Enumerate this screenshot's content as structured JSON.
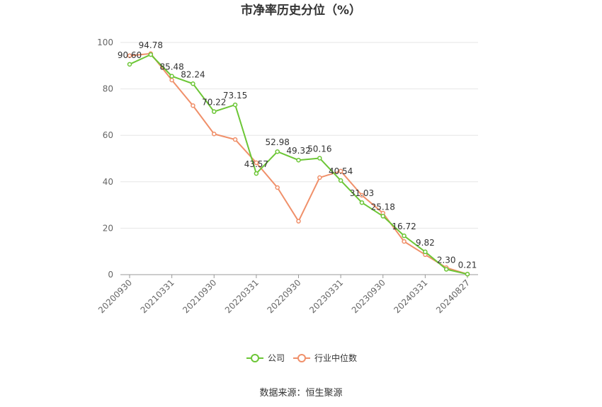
{
  "chart_data": {
    "type": "line",
    "title": "市净率历史分位（%）",
    "xlabel": "",
    "ylabel": "",
    "ylim": [
      0,
      100
    ],
    "yticks": [
      0,
      20,
      40,
      60,
      80,
      100
    ],
    "x_tick_labels": [
      "20200930",
      "20210331",
      "20210930",
      "20220331",
      "20220930",
      "20230331",
      "20230930",
      "20240331",
      "20240827"
    ],
    "x_points": 17,
    "x_tick_indices": [
      0,
      2,
      4,
      6,
      8,
      10,
      12,
      14,
      16
    ],
    "grid": true,
    "legend_position": "bottom-center",
    "series": [
      {
        "name": "公司",
        "color": "#6cc636",
        "values": [
          90.6,
          94.78,
          85.48,
          82.24,
          70.22,
          73.15,
          43.57,
          52.98,
          49.32,
          50.16,
          40.54,
          31.03,
          25.18,
          16.72,
          9.82,
          2.3,
          0.21
        ],
        "labels": [
          "90.60",
          "94.78",
          "85.48",
          "82.24",
          "70.22",
          "73.15",
          "43.57",
          "52.98",
          "49.32",
          "50.16",
          "40.54",
          "31.03",
          "25.18",
          "16.72",
          "9.82",
          "2.30",
          "0.21"
        ]
      },
      {
        "name": "行业中位数",
        "color": "#f0906a",
        "values": [
          94.3,
          95.2,
          83.8,
          72.8,
          60.6,
          58.2,
          48.2,
          37.5,
          23.0,
          41.8,
          44.6,
          34.2,
          26.5,
          14.3,
          8.6,
          3.0,
          0.2
        ]
      }
    ]
  },
  "source_text": "数据来源：恒生聚源"
}
